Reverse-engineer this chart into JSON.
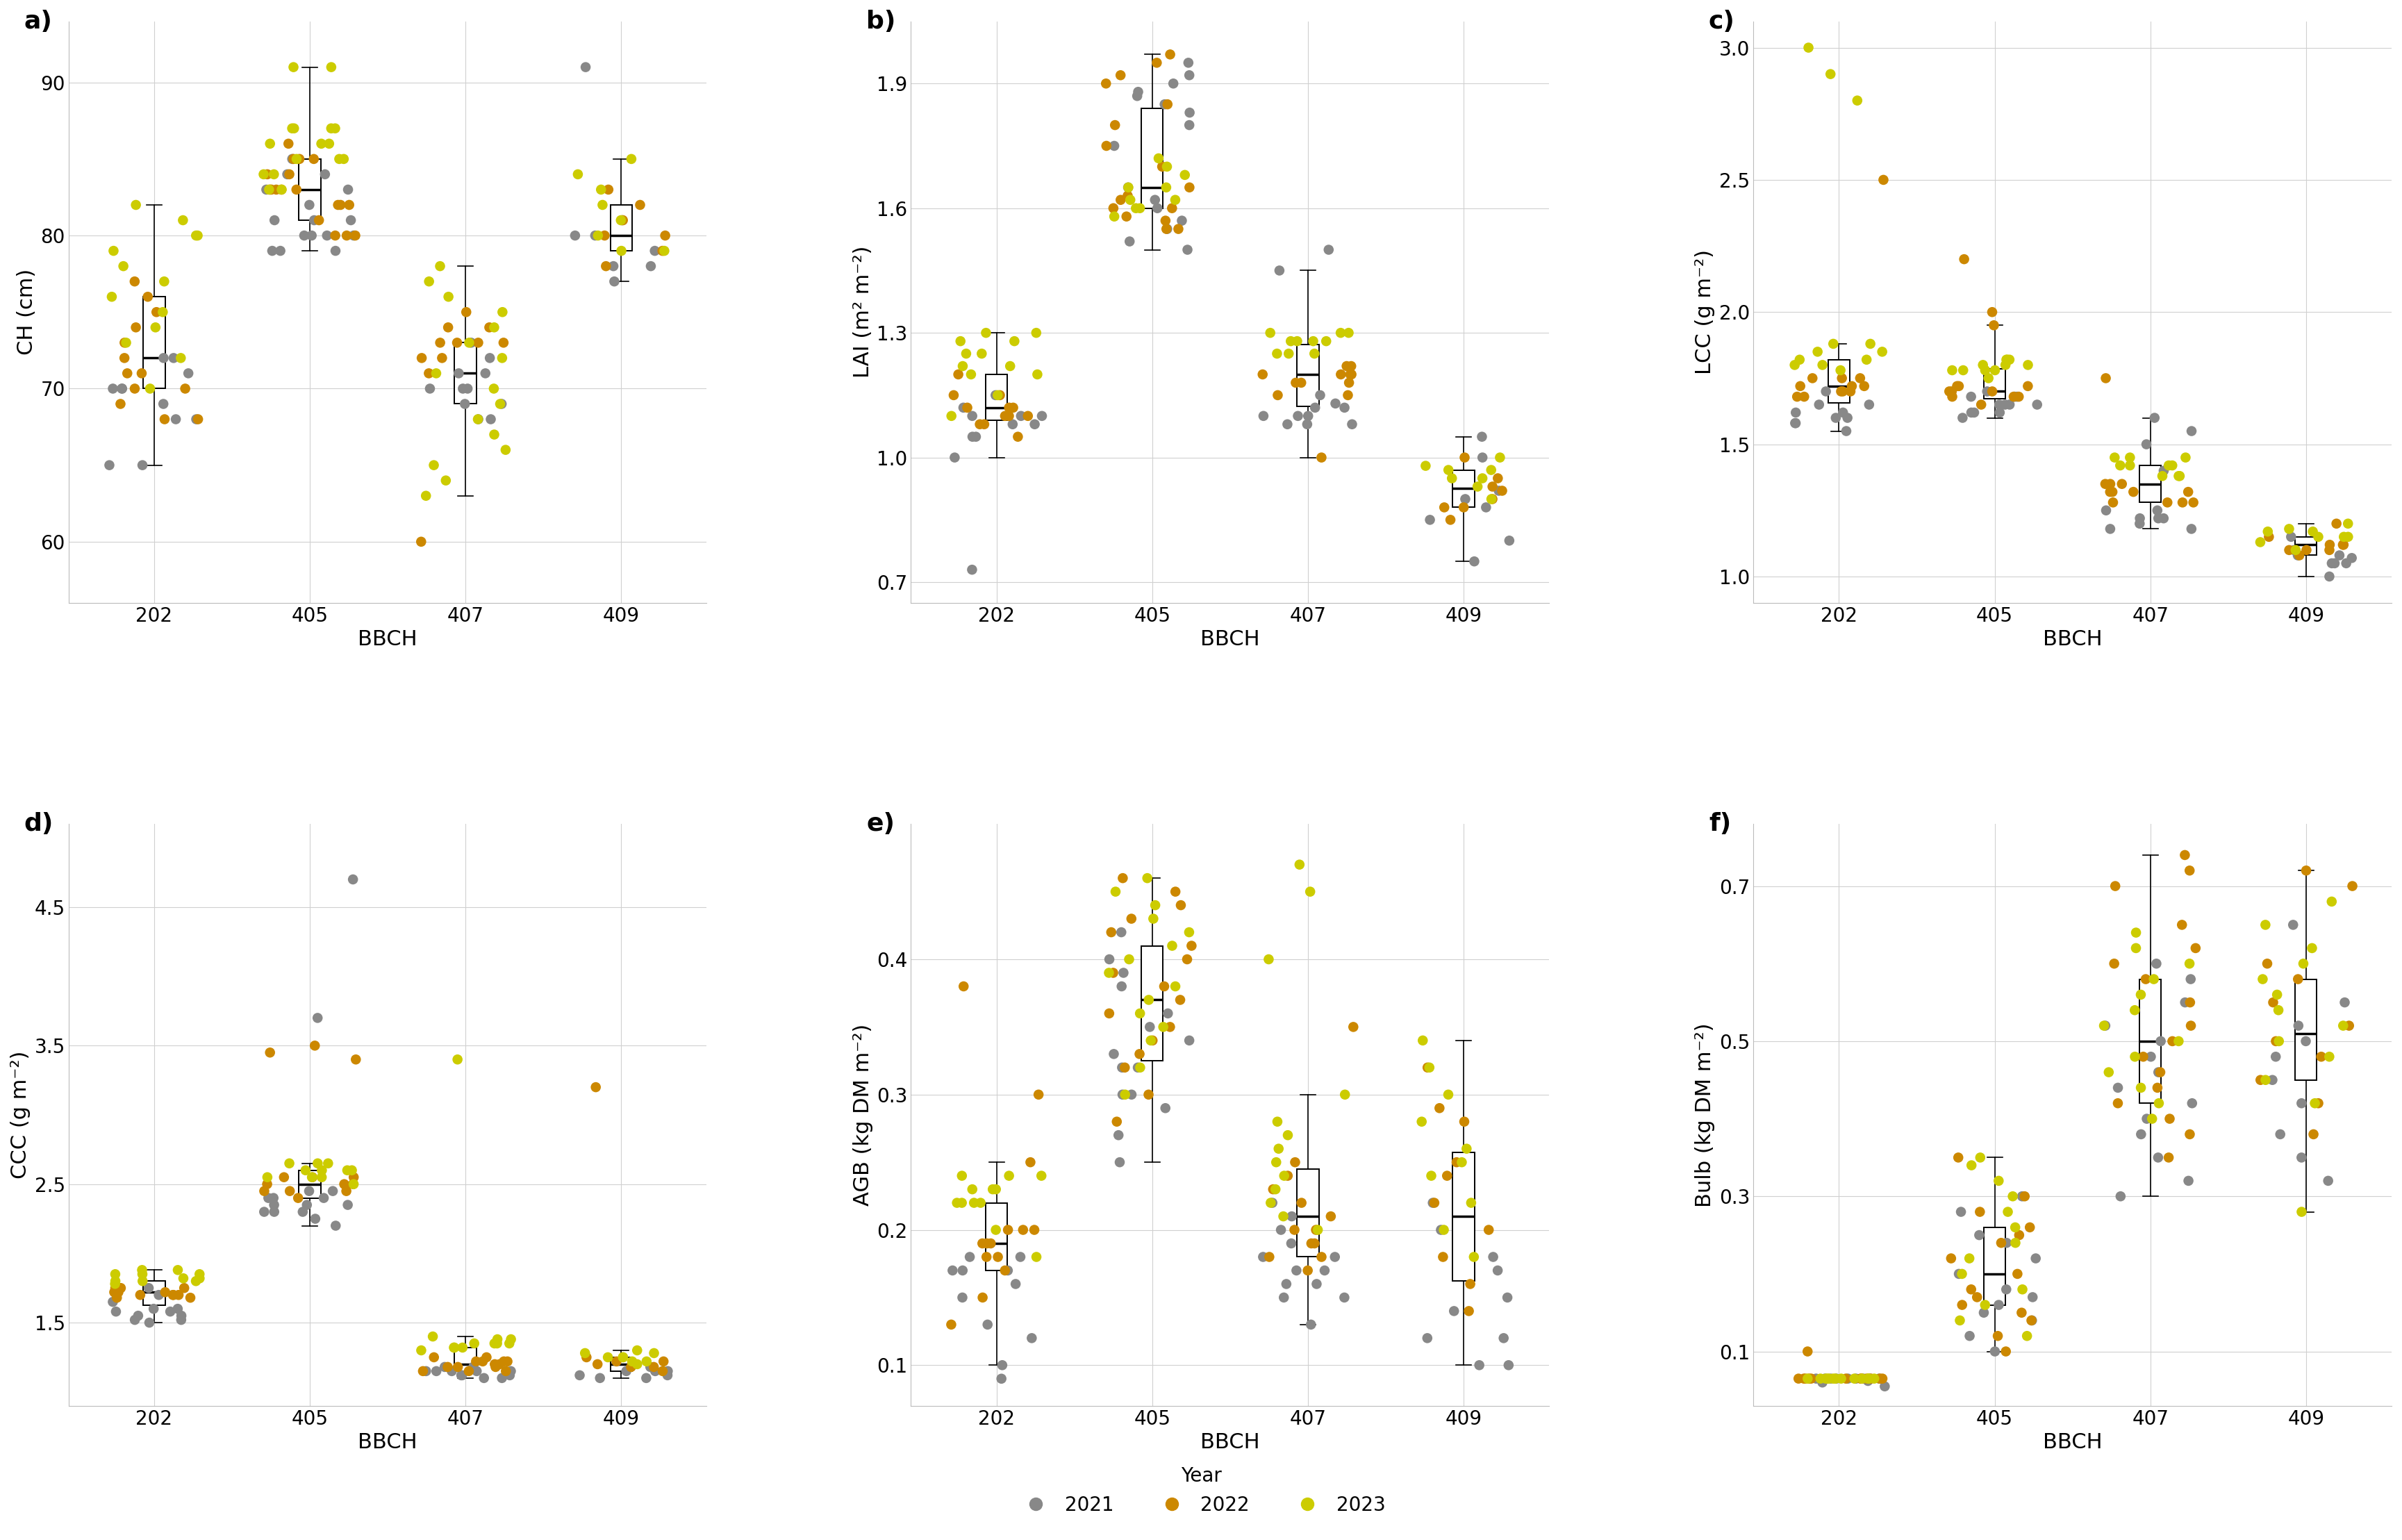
{
  "panels": [
    "a",
    "b",
    "c",
    "d",
    "e",
    "f"
  ],
  "ylabels": [
    "CH (cm)",
    "LAI (m² m⁻²)",
    "LCC (g m⁻²)",
    "CCC (g m⁻²)",
    "AGB (kg DM m⁻²)",
    "Bulb (kg DM m⁻²)"
  ],
  "xlabel": "BBCH",
  "bbch_labels": [
    "202",
    "405",
    "407",
    "409"
  ],
  "year_colors": {
    "2021": "#888888",
    "2022": "#cc8800",
    "2023": "#cccc00"
  },
  "CH": {
    "202": {
      "2021": [
        65,
        68,
        68,
        69,
        70,
        70,
        70,
        71,
        72,
        72,
        65
      ],
      "2022": [
        68,
        70,
        71,
        72,
        73,
        74,
        75,
        76,
        77,
        68,
        69,
        70,
        71
      ],
      "2023": [
        70,
        72,
        73,
        74,
        75,
        76,
        77,
        78,
        79,
        80,
        80,
        81,
        82
      ]
    },
    "405": {
      "2021": [
        79,
        80,
        80,
        81,
        82,
        83,
        83,
        84,
        84,
        85,
        80,
        81,
        79,
        80,
        79,
        81
      ],
      "2022": [
        80,
        81,
        82,
        83,
        83,
        84,
        85,
        85,
        86,
        82,
        83,
        84,
        85,
        83,
        82,
        83,
        80,
        80
      ],
      "2023": [
        83,
        84,
        85,
        86,
        87,
        87,
        86,
        85,
        84,
        85,
        86,
        87,
        83,
        87,
        91,
        91
      ]
    },
    "407": {
      "2021": [
        68,
        69,
        70,
        70,
        71,
        72,
        73,
        68,
        69,
        70,
        71
      ],
      "2022": [
        60,
        71,
        72,
        73,
        74,
        75,
        73,
        72,
        73,
        74,
        73
      ],
      "2023": [
        63,
        64,
        65,
        66,
        67,
        68,
        69,
        70,
        71,
        72,
        73,
        74,
        75,
        76,
        77,
        78
      ]
    },
    "409": {
      "2021": [
        77,
        78,
        79,
        80,
        81,
        78,
        80,
        91
      ],
      "2022": [
        78,
        79,
        80,
        81,
        82,
        83,
        80
      ],
      "2023": [
        79,
        80,
        81,
        82,
        83,
        84,
        85,
        79
      ]
    }
  },
  "LAI": {
    "202": {
      "2021": [
        1.0,
        1.05,
        1.08,
        1.1,
        1.12,
        1.15,
        1.1,
        1.05,
        1.08,
        1.1,
        0.73
      ],
      "2022": [
        1.05,
        1.08,
        1.1,
        1.12,
        1.15,
        1.2,
        1.1,
        1.08,
        1.12,
        1.15,
        1.1,
        1.12
      ],
      "2023": [
        1.1,
        1.15,
        1.2,
        1.22,
        1.25,
        1.28,
        1.3,
        1.2,
        1.22,
        1.25,
        1.28,
        1.3
      ]
    },
    "405": {
      "2021": [
        1.5,
        1.52,
        1.55,
        1.57,
        1.6,
        1.62,
        1.65,
        1.75,
        1.8,
        1.83,
        1.85,
        1.87,
        1.88,
        1.9,
        1.92,
        1.95
      ],
      "2022": [
        1.55,
        1.57,
        1.6,
        1.62,
        1.65,
        1.7,
        1.75,
        1.8,
        1.85,
        1.9,
        1.92,
        1.95,
        1.97,
        1.55,
        1.58,
        1.6,
        1.63
      ],
      "2023": [
        1.6,
        1.62,
        1.65,
        1.68,
        1.7,
        1.72,
        1.58,
        1.6,
        1.62,
        1.65
      ]
    },
    "407": {
      "2021": [
        1.08,
        1.1,
        1.12,
        1.15,
        1.13,
        1.1,
        1.12,
        1.08,
        1.45,
        1.5,
        1.08,
        1.1
      ],
      "2022": [
        1.0,
        1.15,
        1.18,
        1.2,
        1.22,
        1.18,
        1.2,
        1.15,
        1.18,
        1.2,
        1.22,
        1.2
      ],
      "2023": [
        1.25,
        1.28,
        1.3,
        1.28,
        1.25,
        1.28,
        1.3,
        1.28,
        1.25,
        1.3
      ]
    },
    "409": {
      "2021": [
        0.75,
        0.8,
        0.85,
        0.9,
        0.92,
        0.88,
        1.05,
        1.0
      ],
      "2022": [
        0.85,
        0.88,
        0.9,
        0.93,
        0.95,
        0.92,
        1.0,
        0.88
      ],
      "2023": [
        0.9,
        0.93,
        0.95,
        0.97,
        1.0,
        0.97,
        0.95,
        0.98
      ]
    }
  },
  "LCC": {
    "202": {
      "2021": [
        1.55,
        1.58,
        1.6,
        1.62,
        1.65,
        1.6,
        1.58,
        1.62,
        1.65,
        1.7
      ],
      "2022": [
        1.68,
        1.7,
        1.72,
        1.75,
        1.7,
        1.72,
        1.68,
        1.75,
        1.7,
        1.72,
        1.75,
        2.5
      ],
      "2023": [
        1.78,
        1.8,
        1.82,
        1.85,
        1.88,
        1.82,
        1.8,
        1.85,
        1.88,
        2.8,
        2.9,
        3.0
      ]
    },
    "405": {
      "2021": [
        1.6,
        1.62,
        1.65,
        1.68,
        1.65,
        1.62,
        1.65,
        1.68,
        1.62,
        1.65,
        1.7,
        1.68
      ],
      "2022": [
        1.65,
        1.68,
        1.7,
        1.72,
        1.68,
        1.7,
        1.72,
        1.68,
        1.7,
        1.72,
        1.95,
        2.0,
        2.2
      ],
      "2023": [
        1.75,
        1.78,
        1.8,
        1.82,
        1.78,
        1.8,
        1.82,
        1.78,
        1.8,
        1.82,
        1.78
      ]
    },
    "407": {
      "2021": [
        1.18,
        1.22,
        1.25,
        1.22,
        1.18,
        1.25,
        1.22,
        1.4,
        1.5,
        1.6,
        1.55,
        1.2
      ],
      "2022": [
        1.28,
        1.32,
        1.35,
        1.32,
        1.28,
        1.35,
        1.32,
        1.28,
        1.35,
        1.32,
        1.28,
        1.75
      ],
      "2023": [
        1.38,
        1.42,
        1.45,
        1.42,
        1.38,
        1.45,
        1.42,
        1.38,
        1.45,
        1.42
      ]
    },
    "409": {
      "2021": [
        1.0,
        1.05,
        1.07,
        1.08,
        1.1,
        1.05,
        1.15,
        1.05,
        1.08
      ],
      "2022": [
        1.08,
        1.1,
        1.12,
        1.15,
        1.12,
        1.1,
        1.2,
        1.1,
        1.12
      ],
      "2023": [
        1.1,
        1.13,
        1.15,
        1.17,
        1.18,
        1.2,
        1.15,
        1.17,
        1.15
      ]
    }
  },
  "CCC": {
    "202": {
      "2021": [
        1.5,
        1.52,
        1.55,
        1.58,
        1.6,
        1.55,
        1.52,
        1.58,
        1.6,
        1.65,
        1.7,
        1.75
      ],
      "2022": [
        1.68,
        1.7,
        1.72,
        1.75,
        1.7,
        1.72,
        1.68,
        1.75,
        1.7,
        1.72,
        1.75,
        1.7
      ],
      "2023": [
        1.78,
        1.8,
        1.82,
        1.85,
        1.88,
        1.82,
        1.8,
        1.85,
        1.88,
        1.8,
        1.85
      ]
    },
    "405": {
      "2021": [
        2.2,
        2.25,
        2.3,
        2.35,
        2.4,
        2.45,
        2.3,
        2.35,
        2.4,
        2.3,
        2.35,
        2.4,
        2.45,
        3.7,
        4.7
      ],
      "2022": [
        2.4,
        2.45,
        2.5,
        2.55,
        2.5,
        2.45,
        2.55,
        2.5,
        2.45,
        2.55,
        3.4,
        3.45,
        3.5
      ],
      "2023": [
        2.5,
        2.55,
        2.6,
        2.65,
        2.6,
        2.55,
        2.65,
        2.6,
        2.55,
        2.65,
        2.6
      ]
    },
    "407": {
      "2021": [
        1.1,
        1.12,
        1.15,
        1.18,
        1.15,
        1.12,
        1.15,
        1.18,
        1.15,
        1.12,
        1.15,
        1.1
      ],
      "2022": [
        1.15,
        1.18,
        1.2,
        1.22,
        1.25,
        1.22,
        1.18,
        1.22,
        1.25,
        1.22,
        1.18,
        1.15,
        1.2,
        1.15
      ],
      "2023": [
        1.3,
        1.32,
        1.35,
        1.38,
        1.4,
        1.35,
        1.32,
        1.35,
        1.38,
        1.35,
        1.32,
        3.4
      ]
    },
    "409": {
      "2021": [
        1.1,
        1.12,
        1.15,
        1.18,
        1.15,
        1.12,
        1.15,
        1.1
      ],
      "2022": [
        1.15,
        1.18,
        1.2,
        1.22,
        1.25,
        1.22,
        1.18,
        3.2
      ],
      "2023": [
        1.2,
        1.22,
        1.25,
        1.28,
        1.3,
        1.25,
        1.22,
        1.25,
        1.28
      ]
    }
  },
  "AGB": {
    "202": {
      "2021": [
        0.09,
        0.1,
        0.12,
        0.13,
        0.15,
        0.17,
        0.18,
        0.17,
        0.16,
        0.18,
        0.17
      ],
      "2022": [
        0.13,
        0.15,
        0.17,
        0.18,
        0.19,
        0.2,
        0.19,
        0.18,
        0.2,
        0.19,
        0.2,
        0.25,
        0.3,
        0.38
      ],
      "2023": [
        0.18,
        0.2,
        0.22,
        0.23,
        0.24,
        0.23,
        0.22,
        0.24,
        0.23,
        0.22,
        0.24,
        0.22
      ]
    },
    "405": {
      "2021": [
        0.25,
        0.27,
        0.29,
        0.3,
        0.32,
        0.34,
        0.35,
        0.36,
        0.38,
        0.39,
        0.4,
        0.42,
        0.3,
        0.32,
        0.33
      ],
      "2022": [
        0.28,
        0.3,
        0.32,
        0.33,
        0.34,
        0.35,
        0.36,
        0.37,
        0.38,
        0.39,
        0.4,
        0.41,
        0.42,
        0.43,
        0.44,
        0.45,
        0.46
      ],
      "2023": [
        0.3,
        0.32,
        0.34,
        0.35,
        0.36,
        0.37,
        0.38,
        0.39,
        0.4,
        0.41,
        0.42,
        0.43,
        0.44,
        0.45,
        0.46
      ]
    },
    "407": {
      "2021": [
        0.13,
        0.15,
        0.16,
        0.17,
        0.18,
        0.19,
        0.2,
        0.21,
        0.22,
        0.15,
        0.16,
        0.17,
        0.18
      ],
      "2022": [
        0.17,
        0.18,
        0.19,
        0.2,
        0.21,
        0.22,
        0.23,
        0.24,
        0.25,
        0.18,
        0.19,
        0.2,
        0.35
      ],
      "2023": [
        0.2,
        0.21,
        0.22,
        0.23,
        0.24,
        0.25,
        0.26,
        0.27,
        0.28,
        0.3,
        0.4,
        0.45,
        0.47
      ]
    },
    "409": {
      "2021": [
        0.1,
        0.12,
        0.14,
        0.15,
        0.17,
        0.18,
        0.2,
        0.22,
        0.1,
        0.12
      ],
      "2022": [
        0.14,
        0.16,
        0.18,
        0.2,
        0.22,
        0.24,
        0.25,
        0.28,
        0.29,
        0.32
      ],
      "2023": [
        0.18,
        0.2,
        0.22,
        0.24,
        0.25,
        0.26,
        0.28,
        0.3,
        0.32,
        0.34
      ]
    }
  },
  "Bulb": {
    "202": {
      "2021": [
        0.055,
        0.06,
        0.062,
        0.065,
        0.065,
        0.065,
        0.065,
        0.065,
        0.065,
        0.065,
        0.065,
        0.065
      ],
      "2022": [
        0.065,
        0.065,
        0.065,
        0.065,
        0.065,
        0.065,
        0.065,
        0.065,
        0.065,
        0.065,
        0.065,
        0.065,
        0.1
      ],
      "2023": [
        0.065,
        0.065,
        0.065,
        0.065,
        0.065,
        0.065,
        0.065,
        0.065,
        0.065,
        0.065,
        0.065,
        0.065,
        0.065
      ]
    },
    "405": {
      "2021": [
        0.1,
        0.12,
        0.14,
        0.15,
        0.16,
        0.17,
        0.18,
        0.2,
        0.22,
        0.24,
        0.25,
        0.28,
        0.3
      ],
      "2022": [
        0.1,
        0.12,
        0.14,
        0.15,
        0.16,
        0.17,
        0.18,
        0.2,
        0.22,
        0.24,
        0.25,
        0.26,
        0.28,
        0.3,
        0.35
      ],
      "2023": [
        0.12,
        0.14,
        0.16,
        0.18,
        0.2,
        0.22,
        0.24,
        0.26,
        0.28,
        0.3,
        0.32,
        0.34,
        0.35
      ]
    },
    "407": {
      "2021": [
        0.3,
        0.32,
        0.35,
        0.38,
        0.4,
        0.42,
        0.44,
        0.46,
        0.48,
        0.5,
        0.52,
        0.55,
        0.58,
        0.6
      ],
      "2022": [
        0.35,
        0.38,
        0.4,
        0.42,
        0.44,
        0.46,
        0.48,
        0.5,
        0.52,
        0.55,
        0.58,
        0.6,
        0.62,
        0.65,
        0.7,
        0.72,
        0.74
      ],
      "2023": [
        0.4,
        0.42,
        0.44,
        0.46,
        0.48,
        0.5,
        0.52,
        0.54,
        0.56,
        0.58,
        0.6,
        0.62,
        0.64
      ]
    },
    "409": {
      "2021": [
        0.32,
        0.35,
        0.38,
        0.42,
        0.45,
        0.48,
        0.5,
        0.52,
        0.55,
        0.65
      ],
      "2022": [
        0.38,
        0.42,
        0.45,
        0.48,
        0.5,
        0.52,
        0.55,
        0.58,
        0.6,
        0.7,
        0.72
      ],
      "2023": [
        0.42,
        0.45,
        0.48,
        0.5,
        0.52,
        0.54,
        0.56,
        0.58,
        0.6,
        0.62,
        0.65,
        0.68,
        0.28
      ]
    }
  },
  "ylims": {
    "CH": [
      56,
      94
    ],
    "LAI": [
      0.65,
      2.05
    ],
    "LCC": [
      0.9,
      3.1
    ],
    "CCC": [
      0.9,
      5.1
    ],
    "AGB": [
      0.07,
      0.5
    ],
    "Bulb": [
      0.03,
      0.78
    ]
  },
  "yticks": {
    "CH": [
      60,
      70,
      80,
      90
    ],
    "LAI": [
      0.7,
      1.0,
      1.3,
      1.6,
      1.9
    ],
    "LCC": [
      1.0,
      1.5,
      2.0,
      2.5,
      3.0
    ],
    "CCC": [
      1.5,
      2.5,
      3.5,
      4.5
    ],
    "AGB": [
      0.1,
      0.2,
      0.3,
      0.4
    ],
    "Bulb": [
      0.1,
      0.3,
      0.5,
      0.7
    ]
  }
}
